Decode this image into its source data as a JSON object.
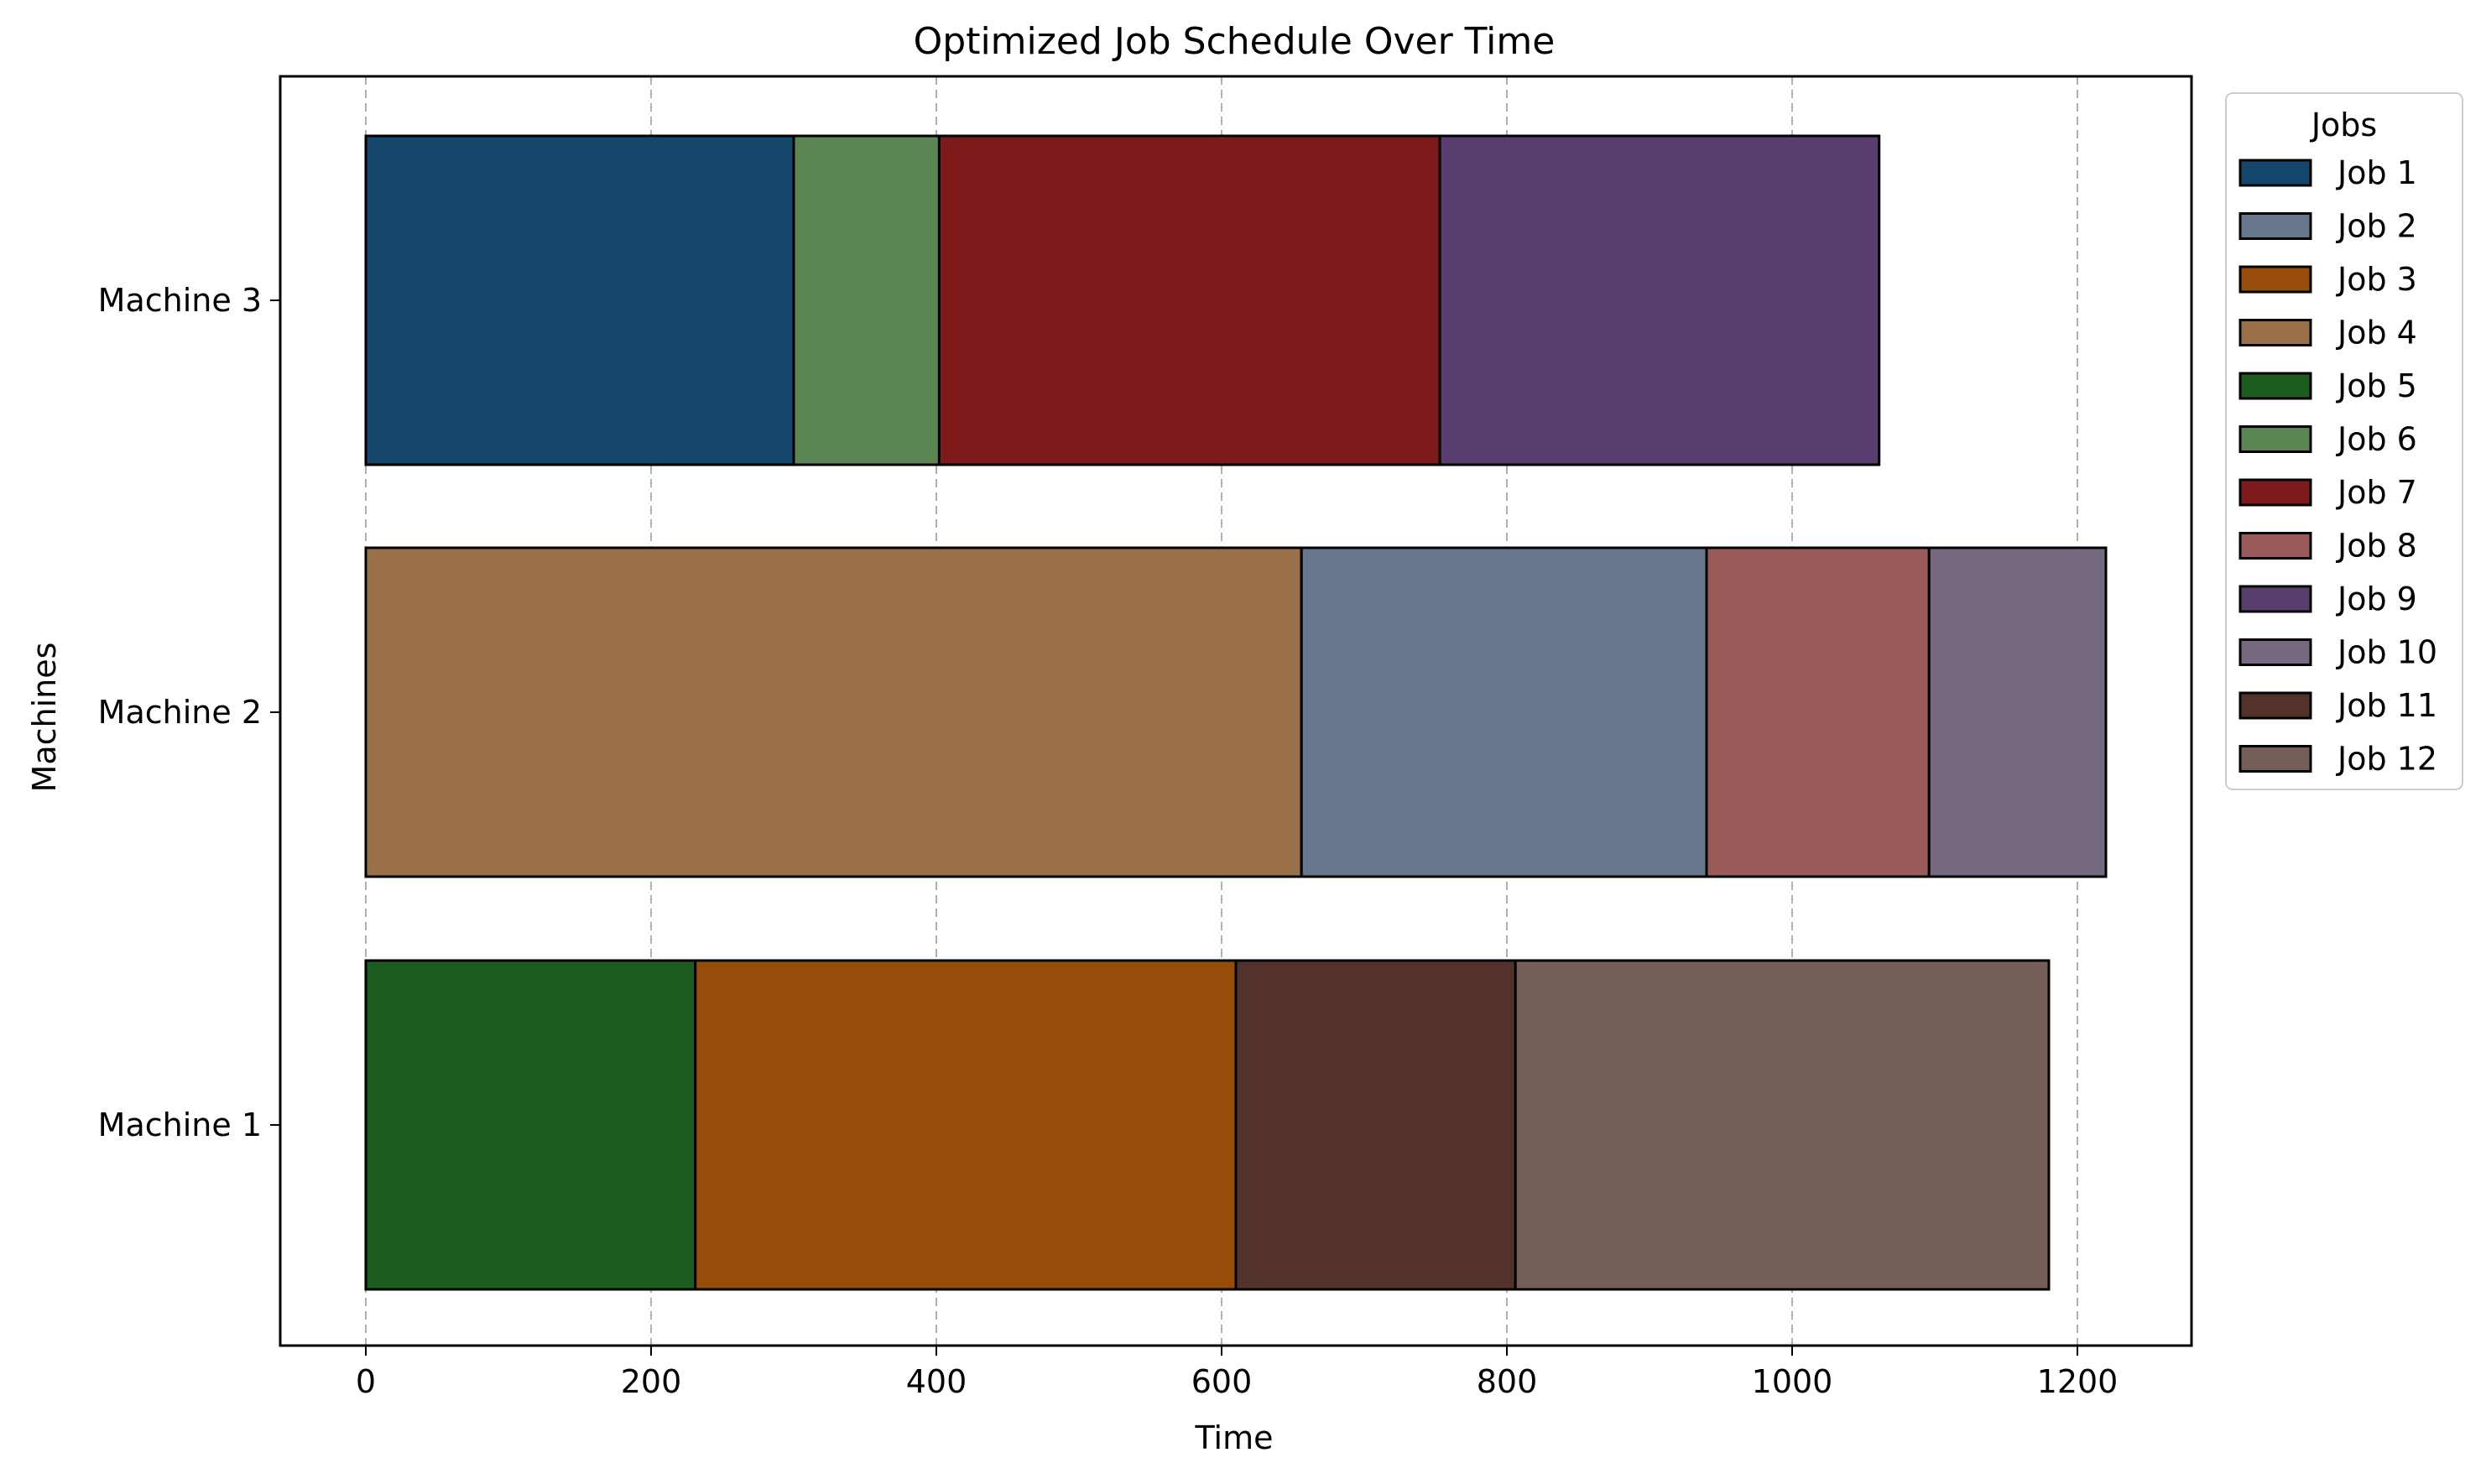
{
  "chart_data": {
    "type": "bar",
    "orientation": "horizontal",
    "stacked": true,
    "title": "Optimized Job Schedule Over Time",
    "xlabel": "Time",
    "ylabel": "Machines",
    "xlim": [
      -60,
      1280
    ],
    "xticks": [
      0,
      200,
      400,
      600,
      800,
      1000,
      1200
    ],
    "categories": [
      "Machine 1",
      "Machine 2",
      "Machine 3"
    ],
    "grid": {
      "x": true,
      "y": false,
      "style": "dashed"
    },
    "legend": {
      "title": "Jobs",
      "placement": "upper right, outside plot"
    },
    "jobs": [
      {
        "name": "Job 1",
        "color": "#15466b"
      },
      {
        "name": "Job 2",
        "color": "#67778c"
      },
      {
        "name": "Job 3",
        "color": "#974d0a"
      },
      {
        "name": "Job 4",
        "color": "#99704a"
      },
      {
        "name": "Job 5",
        "color": "#1c5d1f"
      },
      {
        "name": "Job 6",
        "color": "#5b8653"
      },
      {
        "name": "Job 7",
        "color": "#7f1a1c"
      },
      {
        "name": "Job 8",
        "color": "#9a5a5a"
      },
      {
        "name": "Job 9",
        "color": "#5a3d6f"
      },
      {
        "name": "Job 10",
        "color": "#756a7f"
      },
      {
        "name": "Job 11",
        "color": "#54322c"
      },
      {
        "name": "Job 12",
        "color": "#765f58"
      }
    ],
    "tasks": [
      {
        "machine": "Machine 3",
        "job": "Job 1",
        "start": 0,
        "end": 300
      },
      {
        "machine": "Machine 3",
        "job": "Job 6",
        "start": 300,
        "end": 402
      },
      {
        "machine": "Machine 3",
        "job": "Job 7",
        "start": 402,
        "end": 753
      },
      {
        "machine": "Machine 3",
        "job": "Job 9",
        "start": 753,
        "end": 1061
      },
      {
        "machine": "Machine 2",
        "job": "Job 4",
        "start": 0,
        "end": 656
      },
      {
        "machine": "Machine 2",
        "job": "Job 2",
        "start": 656,
        "end": 940
      },
      {
        "machine": "Machine 2",
        "job": "Job 8",
        "start": 940,
        "end": 1096
      },
      {
        "machine": "Machine 2",
        "job": "Job 10",
        "start": 1096,
        "end": 1220
      },
      {
        "machine": "Machine 1",
        "job": "Job 5",
        "start": 0,
        "end": 231
      },
      {
        "machine": "Machine 1",
        "job": "Job 3",
        "start": 231,
        "end": 610
      },
      {
        "machine": "Machine 1",
        "job": "Job 11",
        "start": 610,
        "end": 806
      },
      {
        "machine": "Machine 1",
        "job": "Job 12",
        "start": 806,
        "end": 1180
      }
    ]
  }
}
